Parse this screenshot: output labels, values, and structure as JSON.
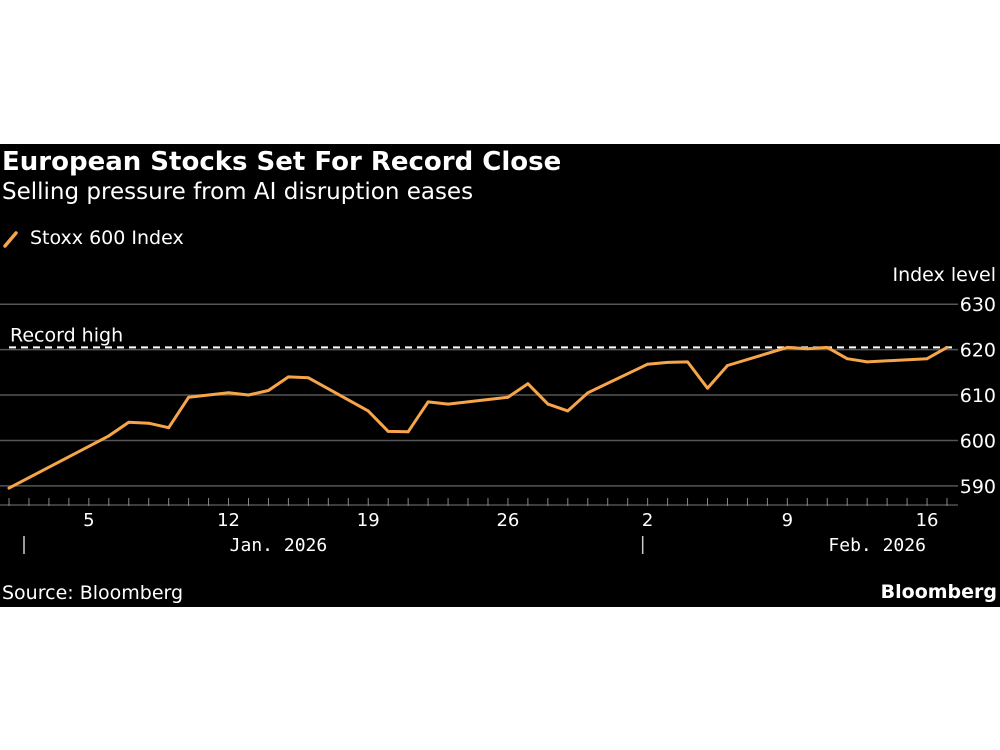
{
  "header": {
    "title": "European Stocks Set For Record Close",
    "subtitle": "Selling pressure from AI disruption eases"
  },
  "legend": {
    "label": "Stoxx 600 Index"
  },
  "footer": {
    "source": "Source: Bloomberg",
    "brand": "Bloomberg"
  },
  "colors": {
    "line": "#f7a54a",
    "background": "#000000",
    "text": "#ffffff",
    "grid": "#555555"
  },
  "chart_data": {
    "type": "line",
    "title": "European Stocks Set For Record Close",
    "subtitle": "Selling pressure from AI disruption eases",
    "ylabel": "Index level",
    "xlabel": "",
    "ylim": [
      586,
      636
    ],
    "yticks": [
      590,
      600,
      610,
      620,
      630
    ],
    "grid": true,
    "legend_position": "top-left",
    "x_ticks": [
      {
        "day": 5,
        "label": "5"
      },
      {
        "day": 12,
        "label": "12"
      },
      {
        "day": 19,
        "label": "19"
      },
      {
        "day": 26,
        "label": "26"
      },
      {
        "day": 33,
        "label": "2"
      },
      {
        "day": 40,
        "label": "9"
      },
      {
        "day": 47,
        "label": "16"
      }
    ],
    "month_labels": [
      {
        "day": 14,
        "label": "Jan. 2026"
      },
      {
        "day": 44,
        "label": "Feb. 2026"
      }
    ],
    "month_separators": [
      1,
      32
    ],
    "reference_line": {
      "label": "Record high",
      "value": 620.5
    },
    "series": [
      {
        "name": "Stoxx 600 Index",
        "x": [
          1,
          6,
          7,
          8,
          9,
          10,
          12,
          13,
          14,
          15,
          16,
          19,
          20,
          21,
          22,
          23,
          26,
          27,
          28,
          29,
          30,
          33,
          34,
          35,
          36,
          37,
          40,
          41,
          42,
          43,
          44,
          47,
          48
        ],
        "values": [
          589.5,
          601,
          604,
          603.8,
          602.8,
          609.5,
          610.5,
          610,
          611,
          614,
          613.8,
          606.5,
          602,
          601.9,
          608.5,
          608,
          609.5,
          612.5,
          608,
          606.5,
          610.5,
          616.8,
          617.2,
          617.3,
          611.5,
          616.5,
          620.5,
          620.2,
          620.5,
          618,
          617.3,
          618,
          620.5
        ]
      }
    ]
  }
}
